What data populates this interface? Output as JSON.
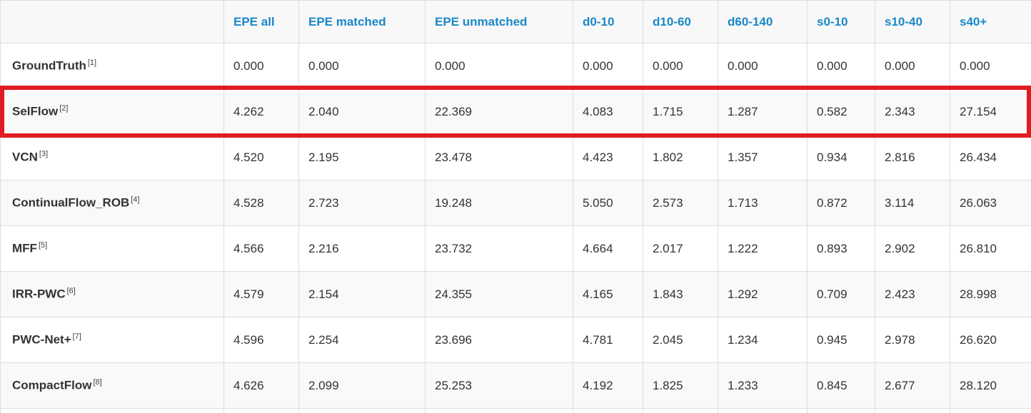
{
  "table": {
    "corner_label": "",
    "columns": [
      "EPE all",
      "EPE matched",
      "EPE unmatched",
      "d0-10",
      "d10-60",
      "d60-140",
      "s0-10",
      "s10-40",
      "s40+"
    ],
    "rows": [
      {
        "name": "GroundTruth",
        "ref": "[1]",
        "highlighted": false,
        "values": [
          "0.000",
          "0.000",
          "0.000",
          "0.000",
          "0.000",
          "0.000",
          "0.000",
          "0.000",
          "0.000"
        ]
      },
      {
        "name": "SelFlow",
        "ref": "[2]",
        "highlighted": true,
        "values": [
          "4.262",
          "2.040",
          "22.369",
          "4.083",
          "1.715",
          "1.287",
          "0.582",
          "2.343",
          "27.154"
        ]
      },
      {
        "name": "VCN",
        "ref": "[3]",
        "highlighted": false,
        "values": [
          "4.520",
          "2.195",
          "23.478",
          "4.423",
          "1.802",
          "1.357",
          "0.934",
          "2.816",
          "26.434"
        ]
      },
      {
        "name": "ContinualFlow_ROB",
        "ref": "[4]",
        "highlighted": false,
        "values": [
          "4.528",
          "2.723",
          "19.248",
          "5.050",
          "2.573",
          "1.713",
          "0.872",
          "3.114",
          "26.063"
        ]
      },
      {
        "name": "MFF",
        "ref": "[5]",
        "highlighted": false,
        "values": [
          "4.566",
          "2.216",
          "23.732",
          "4.664",
          "2.017",
          "1.222",
          "0.893",
          "2.902",
          "26.810"
        ]
      },
      {
        "name": "IRR-PWC",
        "ref": "[6]",
        "highlighted": false,
        "values": [
          "4.579",
          "2.154",
          "24.355",
          "4.165",
          "1.843",
          "1.292",
          "0.709",
          "2.423",
          "28.998"
        ]
      },
      {
        "name": "PWC-Net+",
        "ref": "[7]",
        "highlighted": false,
        "values": [
          "4.596",
          "2.254",
          "23.696",
          "4.781",
          "2.045",
          "1.234",
          "0.945",
          "2.978",
          "26.620"
        ]
      },
      {
        "name": "CompactFlow",
        "ref": "[8]",
        "highlighted": false,
        "values": [
          "4.626",
          "2.099",
          "25.253",
          "4.192",
          "1.825",
          "1.233",
          "0.845",
          "2.677",
          "28.120"
        ]
      }
    ]
  },
  "colors": {
    "header_link": "#1a88c9",
    "highlight_border": "#e11b22",
    "cell_border": "#dddddd",
    "row_stripe": "#f9f9f9",
    "header_background": "#f8f8f8",
    "body_text": "#333333"
  }
}
